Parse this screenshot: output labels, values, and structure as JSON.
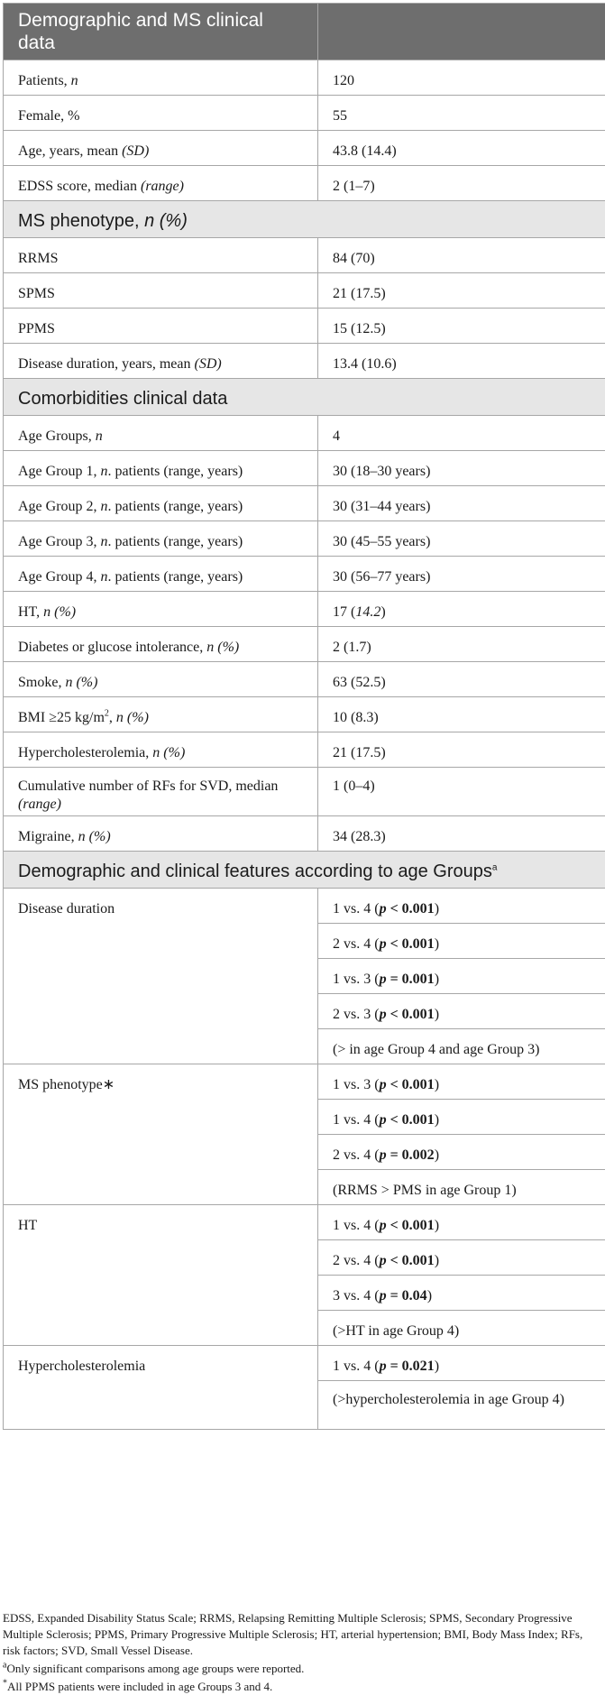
{
  "header": {
    "col1": "Demographic and MS clinical data",
    "col2": ""
  },
  "demographic_rows": [
    {
      "label": "Patients, ",
      "italic": "n",
      "after": "",
      "value": "120"
    },
    {
      "label": "Female, %",
      "italic": "",
      "after": "",
      "value": "55"
    },
    {
      "label": "Age, years, mean ",
      "italic": "(SD)",
      "after": "",
      "value": "43.8 (14.4)"
    },
    {
      "label": "EDSS score, median ",
      "italic": "(range)",
      "after": "",
      "value": "2 (1–7)"
    }
  ],
  "section_phenotype": {
    "text": "MS phenotype, ",
    "italic": "n (%)"
  },
  "phenotype_rows": [
    {
      "label": "RRMS",
      "italic": "",
      "after": "",
      "value": "84 (70)"
    },
    {
      "label": "SPMS",
      "italic": "",
      "after": "",
      "value": "21 (17.5)"
    },
    {
      "label": "PPMS",
      "italic": "",
      "after": "",
      "value": "15 (12.5)"
    },
    {
      "label": "Disease duration, years, mean ",
      "italic": "(SD)",
      "after": "",
      "value": "13.4 (10.6)"
    }
  ],
  "section_comorbidities": {
    "text": "Comorbidities clinical data"
  },
  "comorbidity_rows": [
    {
      "label": "Age Groups, ",
      "italic": "n",
      "after": "",
      "value": "4"
    },
    {
      "label": "Age Group 1, ",
      "italic": "n",
      "after": ". patients (range, years)",
      "value": "30 (18–30 years)"
    },
    {
      "label": "Age Group 2, ",
      "italic": "n",
      "after": ". patients (range, years)",
      "value": "30 (31–44 years)"
    },
    {
      "label": "Age Group 3, ",
      "italic": "n",
      "after": ". patients (range, years)",
      "value": "30 (45–55 years)"
    },
    {
      "label": "Age Group 4, ",
      "italic": "n",
      "after": ". patients (range, years)",
      "value": "30 (56–77 years)"
    },
    {
      "label": "HT, ",
      "italic": "n (%)",
      "after": "",
      "value": "17 (",
      "value_italic": "14.2",
      "value_after": ")"
    },
    {
      "label": "Diabetes or glucose intolerance, ",
      "italic": "n (%)",
      "after": "",
      "value": "2 (1.7)"
    },
    {
      "label": "Smoke, ",
      "italic": "n (%)",
      "after": "",
      "value": "63 (52.5)"
    },
    {
      "label": "BMI ≥25 kg/m",
      "sup": "2",
      "label_after_sup": ", ",
      "italic": "n (%)",
      "after": "",
      "value": "10 (8.3)"
    },
    {
      "label": "Hypercholesterolemia, ",
      "italic": "n (%)",
      "after": "",
      "value": "21 (17.5)"
    },
    {
      "label": "Cumulative number of RFs for SVD, median ",
      "italic": "(range)",
      "after": "",
      "value": "1 (0–4)"
    },
    {
      "label": "Migraine, ",
      "italic": "n (%)",
      "after": "",
      "value": "34 (28.3)"
    }
  ],
  "section_age_groups": {
    "text": "Demographic and clinical features according to age Groups",
    "sup": "a"
  },
  "age_group_blocks": [
    {
      "label": "Disease duration",
      "items": [
        {
          "pre": "1 vs. 4 (",
          "p": "p",
          "rel": " < 0.001",
          "post": ")"
        },
        {
          "pre": "2 vs. 4 (",
          "p": "p",
          "rel": " < 0.001",
          "post": ")"
        },
        {
          "pre": "1 vs. 3 (",
          "p": "p",
          "rel": " = 0.001",
          "post": ")"
        },
        {
          "pre": "2 vs. 3 (",
          "p": "p",
          "rel": " < 0.001",
          "post": ")"
        }
      ],
      "note": "(> in age Group 4 and age Group 3)"
    },
    {
      "label": "MS phenotype∗",
      "items": [
        {
          "pre": "1 vs. 3 (",
          "p": "p",
          "rel": " < 0.001",
          "post": ")"
        },
        {
          "pre": "1 vs. 4 (",
          "p": "p",
          "rel": " < 0.001",
          "post": ")"
        },
        {
          "pre": "2 vs. 4 (",
          "p": "p",
          "rel": " = 0.002",
          "post": ")"
        }
      ],
      "note": "(RRMS > PMS in age Group 1)"
    },
    {
      "label": "HT",
      "items": [
        {
          "pre": "1 vs. 4 (",
          "p": "p",
          "rel": " < 0.001",
          "post": ")"
        },
        {
          "pre": "2 vs. 4 (",
          "p": "p",
          "rel": " < 0.001",
          "post": ")"
        },
        {
          "pre": "3 vs. 4 (",
          "p": "p",
          "rel": " = 0.04",
          "post": ")"
        }
      ],
      "note": "(>HT in age Group 4)"
    },
    {
      "label": "Hypercholesterolemia",
      "items": [
        {
          "pre": "1 vs. 4 (",
          "p": "p",
          "rel": " = 0.021",
          "post": ")"
        }
      ],
      "note": "(>hypercholesterolemia in age Group 4)"
    }
  ],
  "footnotes": {
    "abbreviations": "EDSS, Expanded Disability Status Scale; RRMS, Relapsing Remitting Multiple Sclerosis; SPMS, Secondary Progressive Multiple Sclerosis; PPMS, Primary Progressive Multiple Sclerosis; HT, arterial hypertension; BMI, Body Mass Index; RFs, risk factors; SVD, Small Vessel Disease.",
    "a_mark": "a",
    "a_text": "Only significant comparisons among age groups were reported.",
    "star_mark": "*",
    "star_text": "All PPMS patients were included in age Groups 3 and 4."
  }
}
